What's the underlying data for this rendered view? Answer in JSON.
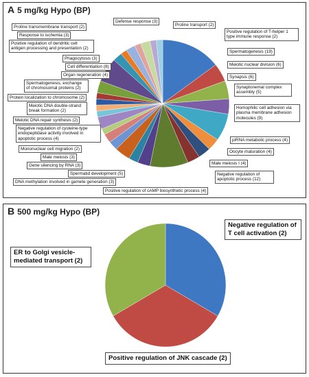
{
  "chart_data": [
    {
      "type": "pie",
      "panel": "A",
      "title": "5 mg/kg Hypo (BP)",
      "slices": [
        {
          "label": "Spermatogenesis (19)",
          "value": 19,
          "color": "#3f78c2"
        },
        {
          "label": "Meiotic nuclear division (6)",
          "value": 6,
          "color": "#c04b45"
        },
        {
          "label": "Synapsis (6)",
          "value": 6,
          "color": "#92b24c"
        },
        {
          "label": "Synaptonemal complex assembly (5)",
          "value": 5,
          "color": "#7b5ea5"
        },
        {
          "label": "Homophilic cell adhesion via plasma membrane adhesion molecules (9)",
          "value": 9,
          "color": "#3fa8c4"
        },
        {
          "label": "piRNA metabolic process (4)",
          "value": 4,
          "color": "#ef8e3c"
        },
        {
          "label": "Oocyte maturation (4)",
          "value": 4,
          "color": "#2f507e"
        },
        {
          "label": "Male meiosis I (4)",
          "value": 4,
          "color": "#86332f"
        },
        {
          "label": "Negative regulation of apoptotic process (12)",
          "value": 12,
          "color": "#5f7b2d"
        },
        {
          "label": "Positive regulation of cAMP biosynthetic process (4)",
          "value": 4,
          "color": "#52408a"
        },
        {
          "label": "DNA methylation involved in gamete generation (3)",
          "value": 3,
          "color": "#2a83a0"
        },
        {
          "label": "Spermatid development (5)",
          "value": 5,
          "color": "#c8611c"
        },
        {
          "label": "Gene silencing by RNA (3)",
          "value": 3,
          "color": "#6e95d3"
        },
        {
          "label": "Male meiosis (3)",
          "value": 3,
          "color": "#d57f7b"
        },
        {
          "label": "Mononuclear cell migration (2)",
          "value": 2,
          "color": "#b4cc7e"
        },
        {
          "label": "Negative regulation of cysteine-type endopeptidase activity involved in apoptotic process (4)",
          "value": 4,
          "color": "#9d86c2"
        },
        {
          "label": "Meiotic DNA repair synthesis (2)",
          "value": 2,
          "color": "#78c4d9"
        },
        {
          "label": "Meiotic DNA double-strand break formation (2)",
          "value": 2,
          "color": "#f4ad73"
        },
        {
          "label": "Protein localization to chromosome (2)",
          "value": 2,
          "color": "#2c5aa0"
        },
        {
          "label": "Spermatogenesis, exchange of chromosomal proteins (2)",
          "value": 2,
          "color": "#a43a34"
        },
        {
          "label": "Organ regeneration (4)",
          "value": 4,
          "color": "#78a03a"
        },
        {
          "label": "Cell differentiation (8)",
          "value": 8,
          "color": "#604a8c"
        },
        {
          "label": "Phagocytosis (3)",
          "value": 3,
          "color": "#3494b3"
        },
        {
          "label": "Positive regulation of dendritic cell antigen processing and presentation (2)",
          "value": 2,
          "color": "#ea7a22"
        },
        {
          "label": "Response to ischemia (3)",
          "value": 3,
          "color": "#97b2df"
        },
        {
          "label": "Proline transmembrane transport (2)",
          "value": 2,
          "color": "#e0a3a0"
        },
        {
          "label": "Defense response (3)",
          "value": 3,
          "color": "#c7da9f"
        },
        {
          "label": "Proline transport (2)",
          "value": 2,
          "color": "#b8a8d6"
        },
        {
          "label": "Positive regulation of T-helper 1 type immune response (2)",
          "value": 2,
          "color": "#9bd1e2"
        }
      ]
    },
    {
      "type": "pie",
      "panel": "B",
      "title": "500 mg/kg Hypo (BP)",
      "slices": [
        {
          "label": "Negative regulation of T cell activation (2)",
          "value": 2,
          "color": "#3f78c2"
        },
        {
          "label": "Positive regulation of JNK cascade (2)",
          "value": 2,
          "color": "#c04b45"
        },
        {
          "label": "ER to Golgi vesicle-mediated transport (2)",
          "value": 2,
          "color": "#92b24c"
        }
      ]
    }
  ],
  "panel_a": {
    "letter": "A",
    "title": "5 mg/kg Hypo (BP)",
    "labels": [
      "Defense response (3)",
      "Proline transport (2)",
      "Positive regulation of T-helper 1 type immune response (2)",
      "Spermatogenesis (19)",
      "Meiotic nuclear division (6)",
      "Synapsis (6)",
      "Synaptonemal complex assembly (5)",
      "Homophilic cell adhesion via plasma membrane adhesion molecules (9)",
      "piRNA metabolic process (4)",
      "Oocyte maturation (4)",
      "Male meiosis I (4)",
      "Negative regulation of apoptotic process (12)",
      "Positive regulation of cAMP biosynthetic process (4)",
      "DNA methylation involved in gamete generation (3)",
      "Spermatid development (5)",
      "Gene silencing by RNA (3)",
      "Male meiosis (3)",
      "Mononuclear cell migration (2)",
      "Negative regulation of cysteine-type endopeptidase activity involved in apoptotic process (4)",
      "Meiotic DNA repair synthesis (2)",
      "Meiotic DNA double-strand break formation (2)",
      "Protein localization to chromosome (2)",
      "Spermatogenesis, exchange of chromosomal proteins (2)",
      "Organ regeneration (4)",
      "Cell differentiation (8)",
      "Phagocytosis (3)",
      "Positive regulation of dendritic cell antigen processing and presentation (2)",
      "Response to ischemia (3)",
      "Proline transmembrane transport (2)"
    ]
  },
  "panel_b": {
    "letter": "B",
    "title": "500 mg/kg Hypo (BP)",
    "labels": [
      "Negative regulation of T cell activation (2)",
      "Positive regulation of JNK cascade (2)",
      "ER to Golgi vesicle-mediated transport (2)"
    ]
  }
}
